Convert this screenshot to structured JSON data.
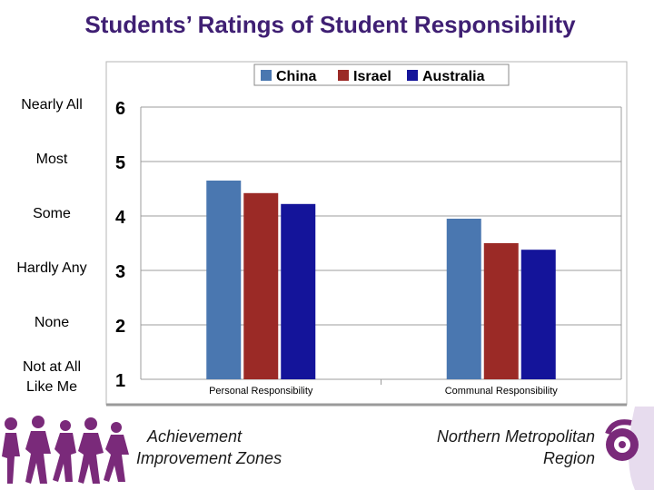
{
  "slide": {
    "title": "Students’ Ratings of Student Responsibility",
    "rating_labels": [
      {
        "value": 6,
        "text": "Nearly All"
      },
      {
        "value": 5,
        "text": "Most"
      },
      {
        "value": 4,
        "text": "Some"
      },
      {
        "value": 3,
        "text": "Hardly Any"
      },
      {
        "value": 2,
        "text": "None"
      },
      {
        "value": 1,
        "text": "Not at All\nLike Me"
      }
    ],
    "footer_left": {
      "line1": "Achievement",
      "line2": "Improvement Zones"
    },
    "footer_right": {
      "line1": "Northern Metropolitan",
      "line2": "Region"
    }
  },
  "chart_data": {
    "type": "bar",
    "categories": [
      "Personal Responsibility",
      "Communal Responsibility"
    ],
    "series": [
      {
        "name": "China",
        "color": "#4a77b0",
        "values": [
          4.65,
          3.95
        ]
      },
      {
        "name": "Israel",
        "color": "#9b2a26",
        "values": [
          4.42,
          3.5
        ]
      },
      {
        "name": "Australia",
        "color": "#14149a",
        "values": [
          4.22,
          3.38
        ]
      }
    ],
    "ylim": [
      1,
      6
    ],
    "yticks": [
      1,
      2,
      3,
      4,
      5,
      6
    ],
    "grid": true,
    "legend_position": "top"
  }
}
